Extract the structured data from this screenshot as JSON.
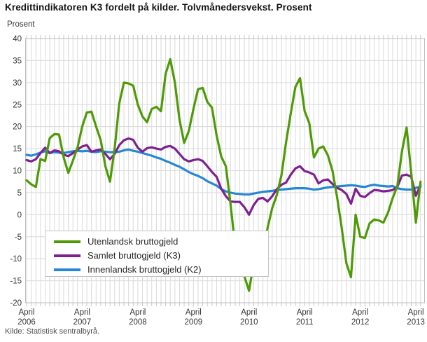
{
  "header": {
    "title": "Kredittindikatoren K3 fordelt på kilder. Tolvmånedersvekst. Prosent"
  },
  "footer": {
    "source": "Kilde: Statistisk sentralbyrå."
  },
  "chart_data": {
    "type": "line",
    "title": "Kredittindikatoren K3 fordelt på kilder. Tolvmånedersvekst. Prosent",
    "ylabel": "Prosent",
    "xlabel": "",
    "ylim": [
      -20,
      40
    ],
    "y_ticks": [
      40,
      35,
      30,
      25,
      20,
      15,
      10,
      5,
      0,
      -5,
      -10,
      -15,
      -20
    ],
    "grid": "on",
    "legend_position": "inside-bottom-left",
    "x_range": {
      "start": "2006-04",
      "end": "2013-05",
      "interval": "monthly",
      "n_points": 86
    },
    "x_ticks": [
      {
        "index": 0,
        "month": "April",
        "year": "2006"
      },
      {
        "index": 12,
        "month": "April",
        "year": "2007"
      },
      {
        "index": 24,
        "month": "April",
        "year": "2008"
      },
      {
        "index": 36,
        "month": "April",
        "year": "2009"
      },
      {
        "index": 48,
        "month": "April",
        "year": "2010"
      },
      {
        "index": 60,
        "month": "April",
        "year": "2011"
      },
      {
        "index": 72,
        "month": "April",
        "year": "2012"
      },
      {
        "index": 84,
        "month": "April",
        "year": "2013"
      }
    ],
    "series": [
      {
        "name": "Utenlandsk bruttogjeld",
        "color": "#4e9a06",
        "values": [
          7.8,
          6.9,
          6.3,
          12.6,
          12.2,
          17.4,
          18.3,
          18.2,
          13.0,
          9.5,
          12.3,
          15.3,
          20.0,
          23.2,
          23.4,
          20.0,
          16.9,
          11.0,
          7.5,
          15.0,
          25.3,
          30.0,
          29.8,
          29.3,
          25.0,
          22.3,
          21.0,
          24.0,
          24.5,
          23.5,
          32.0,
          35.3,
          30.0,
          21.5,
          16.3,
          19.0,
          24.0,
          28.5,
          28.8,
          25.6,
          24.3,
          18.0,
          13.2,
          11.0,
          2.5,
          -7.3,
          -8.0,
          -14.0,
          -17.3,
          -11.0,
          -7.8,
          -9.4,
          -3.0,
          1.5,
          4.5,
          9.0,
          16.5,
          23.0,
          29.0,
          31.0,
          23.5,
          20.8,
          13.0,
          15.0,
          15.5,
          13.5,
          10.0,
          4.0,
          -3.0,
          -11.0,
          -14.2,
          0.0,
          -5.0,
          -5.3,
          -2.0,
          -1.1,
          -1.3,
          -1.8,
          0.5,
          3.8,
          6.5,
          14.4,
          19.8,
          9.5,
          -1.8,
          7.5
        ]
      },
      {
        "name": "Samlet bruttogjeld (K3)",
        "color": "#7d2190",
        "values": [
          12.4,
          12.1,
          12.6,
          14.0,
          15.2,
          14.0,
          14.6,
          14.4,
          13.6,
          13.3,
          14.0,
          14.8,
          15.5,
          15.8,
          14.3,
          14.6,
          14.8,
          13.8,
          12.6,
          13.8,
          15.8,
          16.9,
          17.3,
          17.0,
          15.2,
          14.3,
          15.1,
          15.3,
          15.0,
          14.8,
          15.4,
          15.6,
          15.0,
          13.8,
          12.6,
          12.1,
          12.4,
          12.6,
          12.2,
          11.0,
          9.7,
          8.6,
          5.9,
          4.2,
          3.0,
          2.9,
          2.9,
          1.7,
          0.0,
          2.2,
          3.6,
          3.8,
          3.0,
          4.2,
          5.8,
          6.8,
          7.3,
          9.1,
          10.5,
          11.0,
          9.9,
          9.6,
          9.1,
          7.1,
          7.8,
          8.0,
          7.0,
          6.1,
          5.6,
          4.7,
          2.5,
          5.9,
          4.3,
          4.0,
          4.9,
          5.6,
          5.5,
          5.3,
          5.4,
          5.6,
          6.3,
          8.9,
          9.1,
          8.6,
          4.3,
          6.7
        ]
      },
      {
        "name": "Innenlandsk bruttogjeld (K2)",
        "color": "#2787d3",
        "values": [
          13.6,
          13.4,
          13.7,
          14.1,
          14.4,
          14.0,
          14.2,
          14.1,
          14.0,
          14.2,
          14.4,
          14.5,
          14.4,
          14.5,
          14.3,
          14.2,
          14.4,
          14.3,
          14.2,
          14.2,
          14.3,
          14.6,
          14.8,
          14.5,
          14.3,
          14.0,
          13.7,
          13.4,
          13.0,
          12.7,
          12.2,
          11.8,
          11.3,
          10.9,
          10.3,
          9.7,
          9.2,
          8.8,
          8.3,
          7.6,
          7.1,
          6.6,
          5.8,
          5.3,
          5.0,
          4.8,
          4.7,
          4.6,
          4.6,
          4.8,
          5.0,
          5.2,
          5.3,
          5.4,
          5.6,
          5.7,
          5.8,
          5.9,
          6.0,
          6.0,
          6.0,
          5.9,
          5.7,
          5.8,
          6.0,
          6.2,
          6.3,
          6.4,
          6.5,
          6.6,
          6.7,
          6.6,
          6.4,
          6.3,
          6.6,
          6.8,
          6.6,
          6.5,
          6.4,
          6.5,
          6.0,
          5.8,
          5.7,
          5.7,
          6.1,
          6.3
        ]
      }
    ],
    "colors": {
      "grid": "#dadada",
      "tick": "#c9c9c9",
      "border": "#bdbdbd",
      "text": "#333333"
    }
  }
}
